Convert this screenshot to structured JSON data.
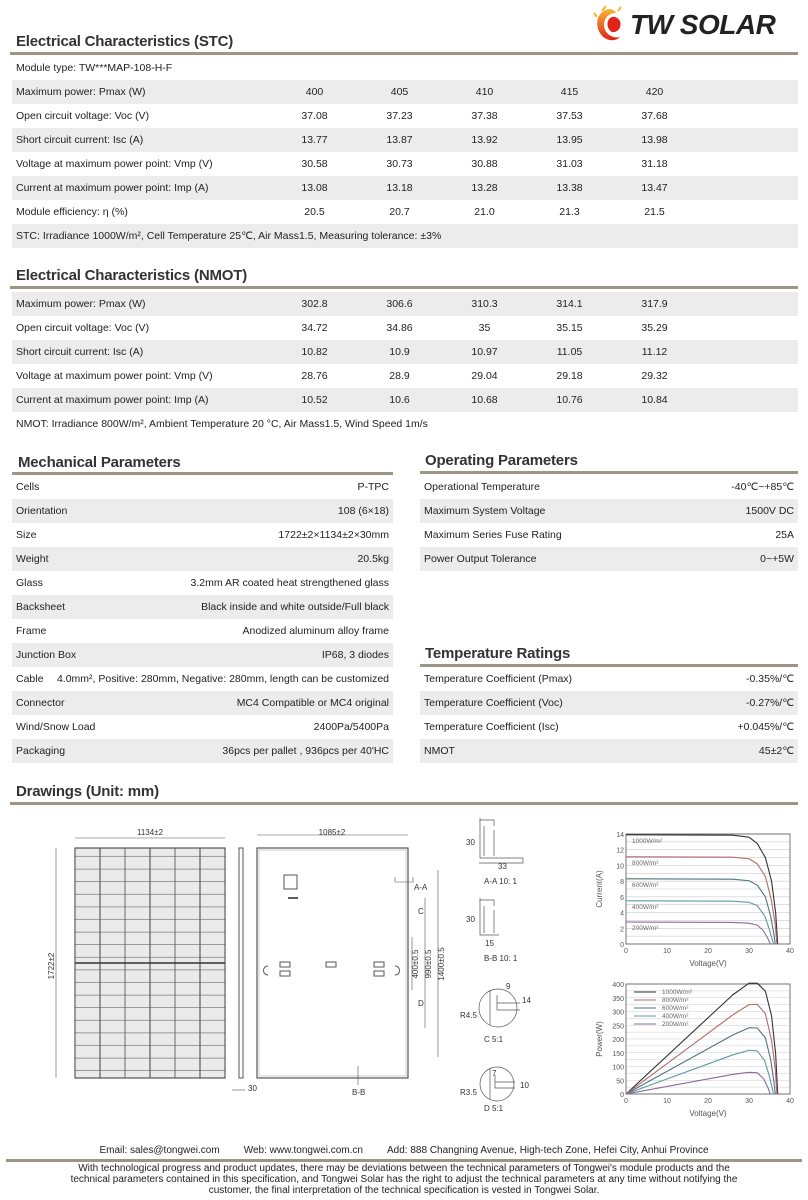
{
  "brand": {
    "logo_text": "TW SOLAR",
    "colors": {
      "rule": "#9e9584",
      "stripe": "#ececec"
    }
  },
  "stc": {
    "title": "Electrical Characteristics (STC)",
    "module_type": "Module type: TW***MAP-108-H-F",
    "rows": [
      {
        "label": "Maximum power: Pmax (W)",
        "values": [
          "400",
          "405",
          "410",
          "415",
          "420"
        ]
      },
      {
        "label": "Open circuit voltage: Voc (V)",
        "values": [
          "37.08",
          "37.23",
          "37.38",
          "37.53",
          "37.68"
        ]
      },
      {
        "label": "Short circuit current: Isc (A)",
        "values": [
          "13.77",
          "13.87",
          "13.92",
          "13.95",
          "13.98"
        ]
      },
      {
        "label": "Voltage at maximum power point: Vmp (V)",
        "values": [
          "30.58",
          "30.73",
          "30.88",
          "31.03",
          "31.18"
        ]
      },
      {
        "label": "Current at maximum power point: Imp (A)",
        "values": [
          "13.08",
          "13.18",
          "13.28",
          "13.38",
          "13.47"
        ]
      },
      {
        "label": "Module efficiency: η (%)",
        "values": [
          "20.5",
          "20.7",
          "21.0",
          "21.3",
          "21.5"
        ]
      }
    ],
    "note": "STC: Irradiance 1000W/m², Cell Temperature 25℃, Air Mass1.5, Measuring tolerance: ±3%"
  },
  "nmot": {
    "title": "Electrical Characteristics (NMOT)",
    "rows": [
      {
        "label": "Maximum power: Pmax (W)",
        "values": [
          "302.8",
          "306.6",
          "310.3",
          "314.1",
          "317.9"
        ]
      },
      {
        "label": "Open circuit voltage: Voc (V)",
        "values": [
          "34.72",
          "34.86",
          "35",
          "35.15",
          "35.29"
        ]
      },
      {
        "label": "Short circuit current: Isc (A)",
        "values": [
          "10.82",
          "10.9",
          "10.97",
          "11.05",
          "11.12"
        ]
      },
      {
        "label": "Voltage at maximum power point: Vmp (V)",
        "values": [
          "28.76",
          "28.9",
          "29.04",
          "29.18",
          "29.32"
        ]
      },
      {
        "label": "Current at maximum power point: Imp (A)",
        "values": [
          "10.52",
          "10.6",
          "10.68",
          "10.76",
          "10.84"
        ]
      }
    ],
    "note": "NMOT: Irradiance 800W/m², Ambient Temperature 20 °C, Air Mass1.5, Wind Speed 1m/s"
  },
  "mechanical": {
    "title": "Mechanical Parameters",
    "rows": [
      {
        "label": "Cells",
        "value": "P-TPC"
      },
      {
        "label": "Orientation",
        "value": "108 (6×18)"
      },
      {
        "label": "Size",
        "value": "1722±2×1134±2×30mm"
      },
      {
        "label": "Weight",
        "value": "20.5kg"
      },
      {
        "label": "Glass",
        "value": "3.2mm AR coated heat strengthened glass"
      },
      {
        "label": "Backsheet",
        "value": "Black inside and white outside/Full black"
      },
      {
        "label": "Frame",
        "value": "Anodized aluminum alloy frame"
      },
      {
        "label": "Junction Box",
        "value": "IP68, 3 diodes"
      },
      {
        "label": "Cable",
        "value": "4.0mm², Positive: 280mm, Negative: 280mm, length can be customized"
      },
      {
        "label": "Connector",
        "value": "MC4 Compatible or MC4 original"
      },
      {
        "label": "Wind/Snow Load",
        "value": "2400Pa/5400Pa"
      },
      {
        "label": "Packaging",
        "value": "36pcs per pallet , 936pcs per 40'HC"
      }
    ]
  },
  "operating": {
    "title": "Operating Parameters",
    "rows": [
      {
        "label": "Operational Temperature",
        "value": "-40℃~+85℃"
      },
      {
        "label": "Maximum System Voltage",
        "value": "1500V DC"
      },
      {
        "label": "Maximum Series Fuse Rating",
        "value": "25A"
      },
      {
        "label": "Power Output Tolerance",
        "value": "0~+5W"
      }
    ]
  },
  "temperature": {
    "title": "Temperature Ratings",
    "rows": [
      {
        "label": "Temperature Coefficient (Pmax)",
        "value": "-0.35%/℃"
      },
      {
        "label": "Temperature Coefficient (Voc)",
        "value": "-0.27%/℃"
      },
      {
        "label": "Temperature Coefficient (Isc)",
        "value": "+0.045%/℃"
      },
      {
        "label": "NMOT",
        "value": "45±2℃"
      }
    ]
  },
  "drawings": {
    "title": "Drawings (Unit: mm)",
    "front_width": "1134±2",
    "height": "1722±2",
    "frame_depth": "30",
    "back_width": "1085±2",
    "dim_400": "400±0.5",
    "dim_990": "990±0.5",
    "dim_1400": "1400±0.5",
    "label_aa": "A-A",
    "label_bb": "B-B",
    "label_c": "C",
    "label_d": "D",
    "aa_caption": "A-A 10: 1",
    "aa_h": "30",
    "aa_w": "33",
    "bb_caption": "B-B 10: 1",
    "bb_h": "30",
    "bb_w": "15",
    "c_caption": "C   5:1",
    "c_r": "R4.5",
    "c_w": "9",
    "c_h": "14",
    "d_caption": "D   5:1",
    "d_r": "R3.5",
    "d_w": "7",
    "d_h": "10"
  },
  "chart_data": [
    {
      "type": "line",
      "xlabel": "Voltage(V)",
      "ylabel": "Current(A)",
      "xlim": [
        0,
        40
      ],
      "ylim": [
        0,
        14
      ],
      "xticks": [
        "0",
        "10",
        "20",
        "30",
        "40"
      ],
      "yticks": [
        "0",
        "2",
        "4",
        "6",
        "8",
        "10",
        "12",
        "14"
      ],
      "grid": true,
      "legend": "inline-left",
      "series": [
        {
          "name": "1000W/m²",
          "color": "#333333",
          "points": [
            [
              0,
              13.9
            ],
            [
              26,
              13.85
            ],
            [
              30,
              13.6
            ],
            [
              32,
              12.8
            ],
            [
              34,
              11
            ],
            [
              35.5,
              8
            ],
            [
              36.5,
              4
            ],
            [
              37,
              0
            ]
          ]
        },
        {
          "name": "800W/m²",
          "color": "#b46a6a",
          "points": [
            [
              0,
              11.1
            ],
            [
              26,
              11.05
            ],
            [
              30,
              10.85
            ],
            [
              32,
              10.2
            ],
            [
              34,
              8.6
            ],
            [
              35.5,
              5.5
            ],
            [
              36.4,
              2.5
            ],
            [
              36.8,
              0
            ]
          ]
        },
        {
          "name": "600W/m²",
          "color": "#4f7480",
          "points": [
            [
              0,
              8.3
            ],
            [
              26,
              8.25
            ],
            [
              30,
              8.05
            ],
            [
              32,
              7.5
            ],
            [
              34,
              6
            ],
            [
              35.3,
              3.5
            ],
            [
              36.1,
              1.2
            ],
            [
              36.4,
              0
            ]
          ]
        },
        {
          "name": "400W/m²",
          "color": "#5d9aa0",
          "points": [
            [
              0,
              5.5
            ],
            [
              26,
              5.45
            ],
            [
              30,
              5.3
            ],
            [
              32,
              4.9
            ],
            [
              33.8,
              3.6
            ],
            [
              35,
              1.8
            ],
            [
              35.7,
              0.5
            ],
            [
              36,
              0
            ]
          ]
        },
        {
          "name": "200W/m²",
          "color": "#8a6a9a",
          "points": [
            [
              0,
              2.8
            ],
            [
              26,
              2.75
            ],
            [
              30,
              2.65
            ],
            [
              32,
              2.4
            ],
            [
              33.5,
              1.7
            ],
            [
              34.6,
              0.7
            ],
            [
              35.2,
              0
            ]
          ]
        }
      ]
    },
    {
      "type": "line",
      "xlabel": "Voltage(V)",
      "ylabel": "Power(W)",
      "xlim": [
        0,
        40
      ],
      "ylim": [
        0,
        400
      ],
      "xticks": [
        "0",
        "10",
        "20",
        "30",
        "40"
      ],
      "yticks": [
        "0",
        "50",
        "100",
        "150",
        "200",
        "250",
        "300",
        "350",
        "400"
      ],
      "grid": true,
      "legend": "top-left",
      "series": [
        {
          "name": "1000W/m²",
          "color": "#333333",
          "points": [
            [
              0,
              0
            ],
            [
              26,
              360
            ],
            [
              30,
              403
            ],
            [
              32,
              403
            ],
            [
              34,
              374
            ],
            [
              35.5,
              284
            ],
            [
              36.5,
              146
            ],
            [
              37,
              0
            ]
          ]
        },
        {
          "name": "800W/m²",
          "color": "#b46a6a",
          "points": [
            [
              0,
              0
            ],
            [
              26,
              287
            ],
            [
              30,
              325
            ],
            [
              32,
              326
            ],
            [
              34,
              292
            ],
            [
              35.5,
              195
            ],
            [
              36.4,
              91
            ],
            [
              36.8,
              0
            ]
          ]
        },
        {
          "name": "600W/m²",
          "color": "#4f7480",
          "points": [
            [
              0,
              0
            ],
            [
              26,
              214
            ],
            [
              30,
              241
            ],
            [
              32,
              240
            ],
            [
              34,
              204
            ],
            [
              35.3,
              124
            ],
            [
              36.1,
              43
            ],
            [
              36.4,
              0
            ]
          ]
        },
        {
          "name": "400W/m²",
          "color": "#5d9aa0",
          "points": [
            [
              0,
              0
            ],
            [
              26,
              142
            ],
            [
              30,
              159
            ],
            [
              32,
              157
            ],
            [
              33.8,
              122
            ],
            [
              35,
              63
            ],
            [
              35.7,
              18
            ],
            [
              36,
              0
            ]
          ]
        },
        {
          "name": "200W/m²",
          "color": "#8a6a9a",
          "points": [
            [
              0,
              0
            ],
            [
              26,
              71
            ],
            [
              30,
              79
            ],
            [
              32,
              77
            ],
            [
              33.5,
              57
            ],
            [
              34.6,
              24
            ],
            [
              35.2,
              0
            ]
          ]
        }
      ]
    }
  ],
  "footer": {
    "email": "Email: sales@tongwei.com",
    "web": "Web: www.tongwei.com.cn",
    "address": "Add: 888 Changning Avenue, High-tech Zone, Hefei City, Anhui Province",
    "disclaimer": "With technological progress and product updates, there may be deviations between the technical parameters of Tongwei's module products and the technical parameters contained in this specification, and Tongwei Solar has the right to adjust the technical parameters at any time without notifying the customer, the final interpretation of the technical specification is vested in Tongwei Solar."
  }
}
